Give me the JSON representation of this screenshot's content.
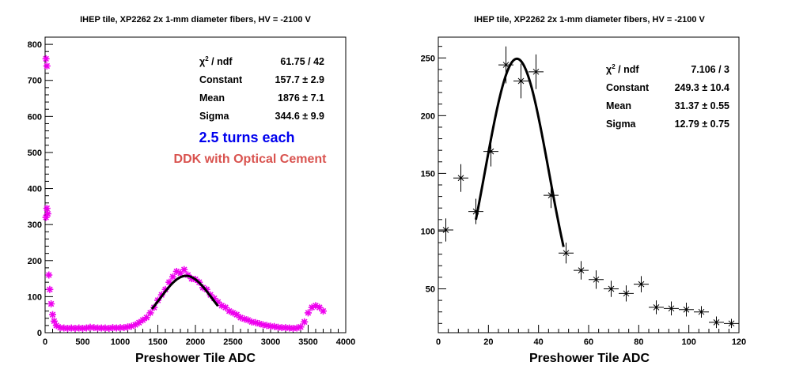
{
  "chart_data": [
    {
      "type": "scatter",
      "title": "IHEP tile, XP2262 2x 1-mm diameter fibers, HV = -2100 V",
      "xlabel": "Preshower Tile ADC",
      "ylabel": "",
      "xlim": [
        0,
        4000
      ],
      "ylim": [
        0,
        820
      ],
      "xticks": [
        0,
        500,
        1000,
        1500,
        2000,
        2500,
        3000,
        3500,
        4000
      ],
      "yticks": [
        0,
        100,
        200,
        300,
        400,
        500,
        600,
        700,
        800
      ],
      "marker_color": "#ee00ee",
      "fit_color": "#000000",
      "stats": [
        {
          "label": "χ² / ndf",
          "value": "61.75 / 42"
        },
        {
          "label": "Constant",
          "value": "157.7 ± 2.9"
        },
        {
          "label": "Mean",
          "value": "1876 ± 7.1"
        },
        {
          "label": "Sigma",
          "value": "344.6 ± 9.9"
        }
      ],
      "annotations": [
        {
          "text": "2.5 turns each",
          "color": "#0000ee"
        },
        {
          "text": "DDK with Optical Cement",
          "color": "#d9534f"
        }
      ],
      "fit": {
        "constant": 157.7,
        "mean": 1876,
        "sigma": 344.6,
        "range": [
          1420,
          2300
        ]
      },
      "points": [
        [
          12,
          760
        ],
        [
          24,
          740
        ],
        [
          12,
          320
        ],
        [
          24,
          345
        ],
        [
          36,
          330
        ],
        [
          50,
          160
        ],
        [
          62,
          120
        ],
        [
          80,
          80
        ],
        [
          100,
          50
        ],
        [
          120,
          32
        ],
        [
          150,
          20
        ],
        [
          200,
          14
        ],
        [
          250,
          13
        ],
        [
          300,
          12
        ],
        [
          350,
          13
        ],
        [
          400,
          12
        ],
        [
          450,
          13
        ],
        [
          500,
          12
        ],
        [
          550,
          13
        ],
        [
          600,
          15
        ],
        [
          650,
          14
        ],
        [
          700,
          13
        ],
        [
          750,
          13
        ],
        [
          800,
          13
        ],
        [
          850,
          12
        ],
        [
          900,
          14
        ],
        [
          950,
          13
        ],
        [
          1000,
          14
        ],
        [
          1050,
          14
        ],
        [
          1100,
          16
        ],
        [
          1150,
          18
        ],
        [
          1200,
          22
        ],
        [
          1250,
          28
        ],
        [
          1300,
          35
        ],
        [
          1350,
          42
        ],
        [
          1400,
          55
        ],
        [
          1450,
          70
        ],
        [
          1500,
          90
        ],
        [
          1550,
          105
        ],
        [
          1600,
          120
        ],
        [
          1650,
          140
        ],
        [
          1700,
          155
        ],
        [
          1750,
          170
        ],
        [
          1800,
          165
        ],
        [
          1850,
          175
        ],
        [
          1900,
          160
        ],
        [
          1950,
          150
        ],
        [
          2000,
          148
        ],
        [
          2050,
          140
        ],
        [
          2100,
          125
        ],
        [
          2150,
          120
        ],
        [
          2200,
          105
        ],
        [
          2250,
          95
        ],
        [
          2300,
          85
        ],
        [
          2350,
          75
        ],
        [
          2400,
          70
        ],
        [
          2450,
          60
        ],
        [
          2500,
          55
        ],
        [
          2550,
          50
        ],
        [
          2600,
          42
        ],
        [
          2650,
          38
        ],
        [
          2700,
          35
        ],
        [
          2750,
          30
        ],
        [
          2800,
          28
        ],
        [
          2850,
          25
        ],
        [
          2900,
          22
        ],
        [
          2950,
          20
        ],
        [
          3000,
          18
        ],
        [
          3050,
          17
        ],
        [
          3100,
          15
        ],
        [
          3150,
          14
        ],
        [
          3200,
          14
        ],
        [
          3250,
          13
        ],
        [
          3300,
          12
        ],
        [
          3350,
          13
        ],
        [
          3400,
          16
        ],
        [
          3450,
          30
        ],
        [
          3500,
          55
        ],
        [
          3550,
          70
        ],
        [
          3600,
          75
        ],
        [
          3650,
          70
        ],
        [
          3700,
          60
        ]
      ]
    },
    {
      "type": "scatter",
      "title": "IHEP tile, XP2262 2x 1-mm diameter fibers, HV = -2100 V",
      "xlabel": "Preshower Tile ADC",
      "ylabel": "",
      "xlim": [
        0,
        120
      ],
      "ylim": [
        12,
        268
      ],
      "xticks": [
        0,
        20,
        40,
        60,
        80,
        100,
        120
      ],
      "yticks": [
        50,
        100,
        150,
        200,
        250
      ],
      "marker_color": "#000000",
      "fit_color": "#000000",
      "stats": [
        {
          "label": "χ² / ndf",
          "value": "7.106 / 3"
        },
        {
          "label": "Constant",
          "value": "249.3 ± 10.4"
        },
        {
          "label": "Mean",
          "value": "31.37 ± 0.55"
        },
        {
          "label": "Sigma",
          "value": "12.79 ± 0.75"
        }
      ],
      "annotations": [],
      "fit": {
        "constant": 249.3,
        "mean": 31.37,
        "sigma": 12.79,
        "range": [
          15,
          50
        ]
      },
      "points": [
        {
          "x": 3,
          "y": 101,
          "xerr": 3,
          "yerr": 10
        },
        {
          "x": 9,
          "y": 146,
          "xerr": 3,
          "yerr": 12
        },
        {
          "x": 15,
          "y": 117,
          "xerr": 3,
          "yerr": 11
        },
        {
          "x": 21,
          "y": 169,
          "xerr": 3,
          "yerr": 13
        },
        {
          "x": 27,
          "y": 244,
          "xerr": 3,
          "yerr": 16
        },
        {
          "x": 33,
          "y": 230,
          "xerr": 3,
          "yerr": 15
        },
        {
          "x": 39,
          "y": 238,
          "xerr": 3,
          "yerr": 15
        },
        {
          "x": 45,
          "y": 131,
          "xerr": 3,
          "yerr": 11
        },
        {
          "x": 51,
          "y": 81,
          "xerr": 3,
          "yerr": 9
        },
        {
          "x": 57,
          "y": 66,
          "xerr": 3,
          "yerr": 8
        },
        {
          "x": 63,
          "y": 58,
          "xerr": 3,
          "yerr": 8
        },
        {
          "x": 69,
          "y": 50,
          "xerr": 3,
          "yerr": 7
        },
        {
          "x": 75,
          "y": 46,
          "xerr": 3,
          "yerr": 7
        },
        {
          "x": 81,
          "y": 54,
          "xerr": 3,
          "yerr": 7
        },
        {
          "x": 87,
          "y": 34,
          "xerr": 3,
          "yerr": 6
        },
        {
          "x": 93,
          "y": 33,
          "xerr": 3,
          "yerr": 6
        },
        {
          "x": 99,
          "y": 32,
          "xerr": 3,
          "yerr": 6
        },
        {
          "x": 105,
          "y": 30,
          "xerr": 3,
          "yerr": 5
        },
        {
          "x": 111,
          "y": 21,
          "xerr": 3,
          "yerr": 5
        },
        {
          "x": 117,
          "y": 20,
          "xerr": 3,
          "yerr": 4
        }
      ]
    }
  ]
}
